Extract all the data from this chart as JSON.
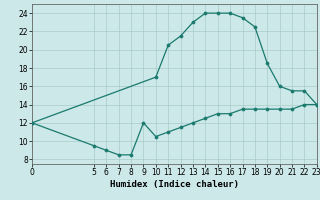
{
  "title": "",
  "xlabel": "Humidex (Indice chaleur)",
  "bg_color": "#cce8e8",
  "line_color": "#1a7a6e",
  "grid_color": "#aacccc",
  "upper_x": [
    0,
    10,
    11,
    12,
    13,
    14,
    15,
    16,
    17,
    18,
    19,
    20,
    21,
    22,
    23
  ],
  "upper_y": [
    12,
    17.0,
    20.5,
    21.5,
    23.0,
    24.0,
    24.0,
    24.0,
    23.5,
    22.5,
    18.5,
    16.0,
    15.5,
    15.5,
    14.0
  ],
  "lower_x": [
    0,
    5,
    6,
    7,
    8,
    9,
    10,
    11,
    12,
    13,
    14,
    15,
    16,
    17,
    18,
    19,
    20,
    21,
    22,
    23
  ],
  "lower_y": [
    12,
    9.5,
    9.0,
    8.5,
    8.5,
    12.0,
    10.5,
    11.0,
    11.5,
    12.0,
    12.5,
    13.0,
    13.0,
    13.5,
    13.5,
    13.5,
    13.5,
    13.5,
    14.0,
    14.0
  ],
  "xlim": [
    0,
    23
  ],
  "ylim": [
    7.5,
    25
  ],
  "xticks": [
    0,
    5,
    6,
    7,
    8,
    9,
    10,
    11,
    12,
    13,
    14,
    15,
    16,
    17,
    18,
    19,
    20,
    21,
    22,
    23
  ],
  "yticks": [
    8,
    10,
    12,
    14,
    16,
    18,
    20,
    22,
    24
  ],
  "xlabel_fontsize": 6.5,
  "tick_fontsize": 5.5
}
